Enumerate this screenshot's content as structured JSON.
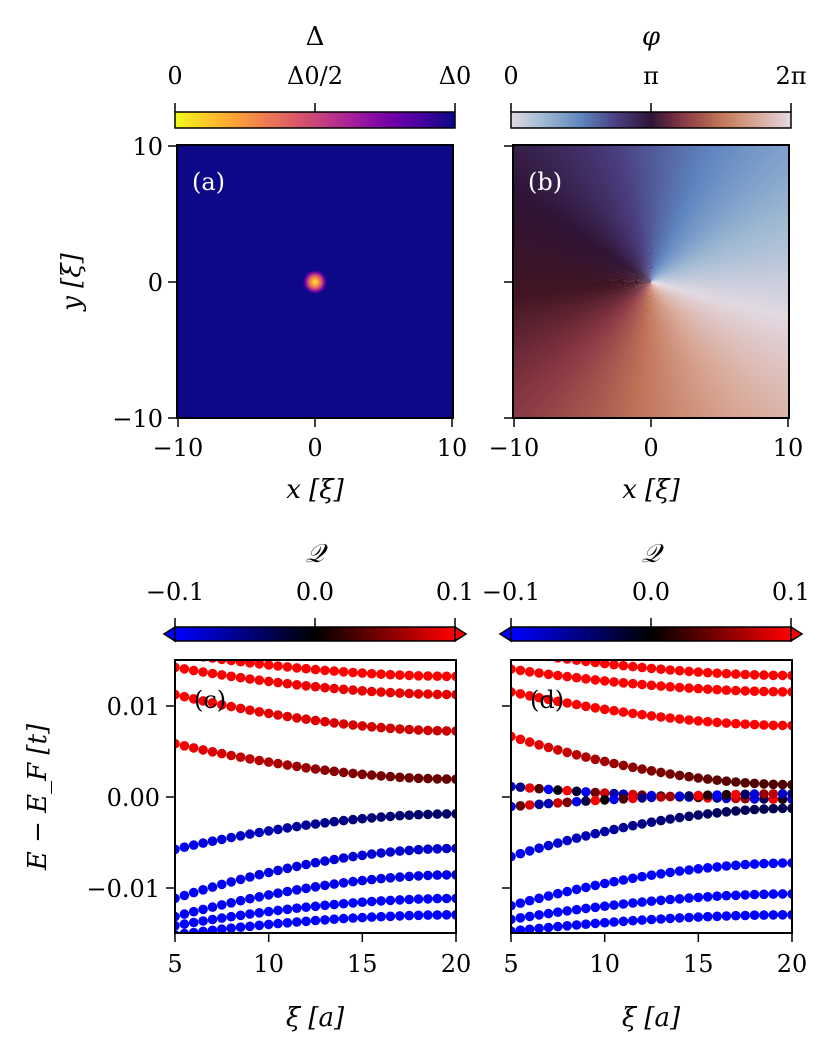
{
  "colors": {
    "plasma": [
      "#f0f921",
      "#fdca26",
      "#fb9f3a",
      "#ed7953",
      "#d8576b",
      "#bd3786",
      "#9c179e",
      "#7201a8",
      "#46039f",
      "#0d0887"
    ],
    "twilight": [
      "#e2d9e2",
      "#9eb9d3",
      "#5e85c0",
      "#4a3d7e",
      "#2f1436",
      "#411523",
      "#8d3a45",
      "#c27559",
      "#d9a998",
      "#e2d9e2"
    ],
    "bwr_under": "#0000ff",
    "bwr_over": "#ff0000",
    "neg": "#0000ff",
    "zero": "#000000",
    "pos": "#ff0000"
  },
  "chart_data": [
    {
      "panel": "(a)",
      "type": "heatmap",
      "quantity": "gap magnitude",
      "colorbar": {
        "label": "Δ",
        "ticks": [
          "0",
          "Δ0/2",
          "Δ0"
        ],
        "range": [
          "0",
          "Δ0"
        ]
      },
      "xlabel": "x [ξ]",
      "ylabel": "y [ξ]",
      "xlim": [
        -10,
        10
      ],
      "ylim": [
        -10,
        10
      ],
      "xticks": [
        "−10",
        "0",
        "10"
      ],
      "yticks": [
        "10",
        "0",
        "−10"
      ],
      "grid": false,
      "description_values": {
        "background_fraction": 1.0,
        "center_fraction": 0.0,
        "core_center": [
          0,
          0
        ],
        "core_radius": 1
      }
    },
    {
      "panel": "(b)",
      "type": "heatmap",
      "quantity": "phase",
      "colorbar": {
        "label": "φ",
        "ticks": [
          "0",
          "π",
          "2π"
        ],
        "range": [
          "0",
          "2π"
        ]
      },
      "xlabel": "x [ξ]",
      "xlim": [
        -10,
        10
      ],
      "ylim": [
        -10,
        10
      ],
      "xticks": [
        "−10",
        "0",
        "10"
      ],
      "grid": false,
      "vortex_center": [
        0,
        0
      ],
      "winding": 1
    },
    {
      "panel": "(c)",
      "type": "scatter",
      "colorbar": {
        "label": "𝒬",
        "ticks": [
          "−0.1",
          "0.0",
          "0.1"
        ],
        "range": [
          -0.1,
          0.1
        ],
        "extend": "both"
      },
      "xlabel": "ξ [a]",
      "ylabel": "E − E_F [t]",
      "xlim": [
        5,
        20
      ],
      "ylim": [
        -0.015,
        0.015
      ],
      "xticks": [
        "5",
        "10",
        "15",
        "20"
      ],
      "yticks": [
        "0.01",
        "0.00",
        "−0.01"
      ],
      "series": [
        {
          "E": [
            0.0158,
            0.0132
          ],
          "Q": [
            0.1,
            0.1
          ]
        },
        {
          "E": [
            0.0142,
            0.0112
          ],
          "Q": [
            0.1,
            0.09
          ]
        },
        {
          "E": [
            0.0112,
            0.0072
          ],
          "Q": [
            0.1,
            0.08
          ]
        },
        {
          "E": [
            0.0058,
            0.0019
          ],
          "Q": [
            0.1,
            0.04
          ]
        },
        {
          "E": [
            -0.0058,
            -0.0019
          ],
          "Q": [
            -0.1,
            -0.04
          ]
        },
        {
          "E": [
            -0.0112,
            -0.0057
          ],
          "Q": [
            -0.1,
            -0.08
          ]
        },
        {
          "E": [
            -0.0132,
            -0.0086
          ],
          "Q": [
            -0.1,
            -0.09
          ]
        },
        {
          "E": [
            -0.0142,
            -0.0112
          ],
          "Q": [
            -0.1,
            -0.1
          ]
        },
        {
          "E": [
            -0.0152,
            -0.013
          ],
          "Q": [
            -0.1,
            -0.1
          ]
        }
      ]
    },
    {
      "panel": "(d)",
      "type": "scatter",
      "colorbar": {
        "label": "𝒬",
        "ticks": [
          "−0.1",
          "0.0",
          "0.1"
        ],
        "range": [
          -0.1,
          0.1
        ],
        "extend": "both"
      },
      "xlabel": "ξ [a]",
      "xlim": [
        5,
        20
      ],
      "ylim": [
        -0.015,
        0.015
      ],
      "xticks": [
        "5",
        "10",
        "15",
        "20"
      ],
      "series": [
        {
          "E": [
            0.016,
            0.0133
          ],
          "Q": [
            0.1,
            0.1
          ]
        },
        {
          "E": [
            0.014,
            0.0115
          ],
          "Q": [
            0.1,
            0.1
          ]
        },
        {
          "E": [
            0.0115,
            0.0078
          ],
          "Q": [
            0.1,
            0.1
          ]
        },
        {
          "E": [
            0.0066,
            0.0013
          ],
          "Q": [
            0.1,
            0.03
          ]
        },
        {
          "E": [
            0.0011,
            -0.0003
          ],
          "Q": "mixed"
        },
        {
          "E": [
            -0.0011,
            0.0003
          ],
          "Q": "mixed"
        },
        {
          "E": [
            -0.0066,
            -0.0013
          ],
          "Q": [
            -0.1,
            -0.03
          ]
        },
        {
          "E": [
            -0.012,
            -0.0073
          ],
          "Q": [
            -0.1,
            -0.1
          ]
        },
        {
          "E": [
            -0.0135,
            -0.0107
          ],
          "Q": [
            -0.1,
            -0.1
          ]
        },
        {
          "E": [
            -0.0148,
            -0.013
          ],
          "Q": [
            -0.1,
            -0.1
          ]
        }
      ]
    }
  ]
}
